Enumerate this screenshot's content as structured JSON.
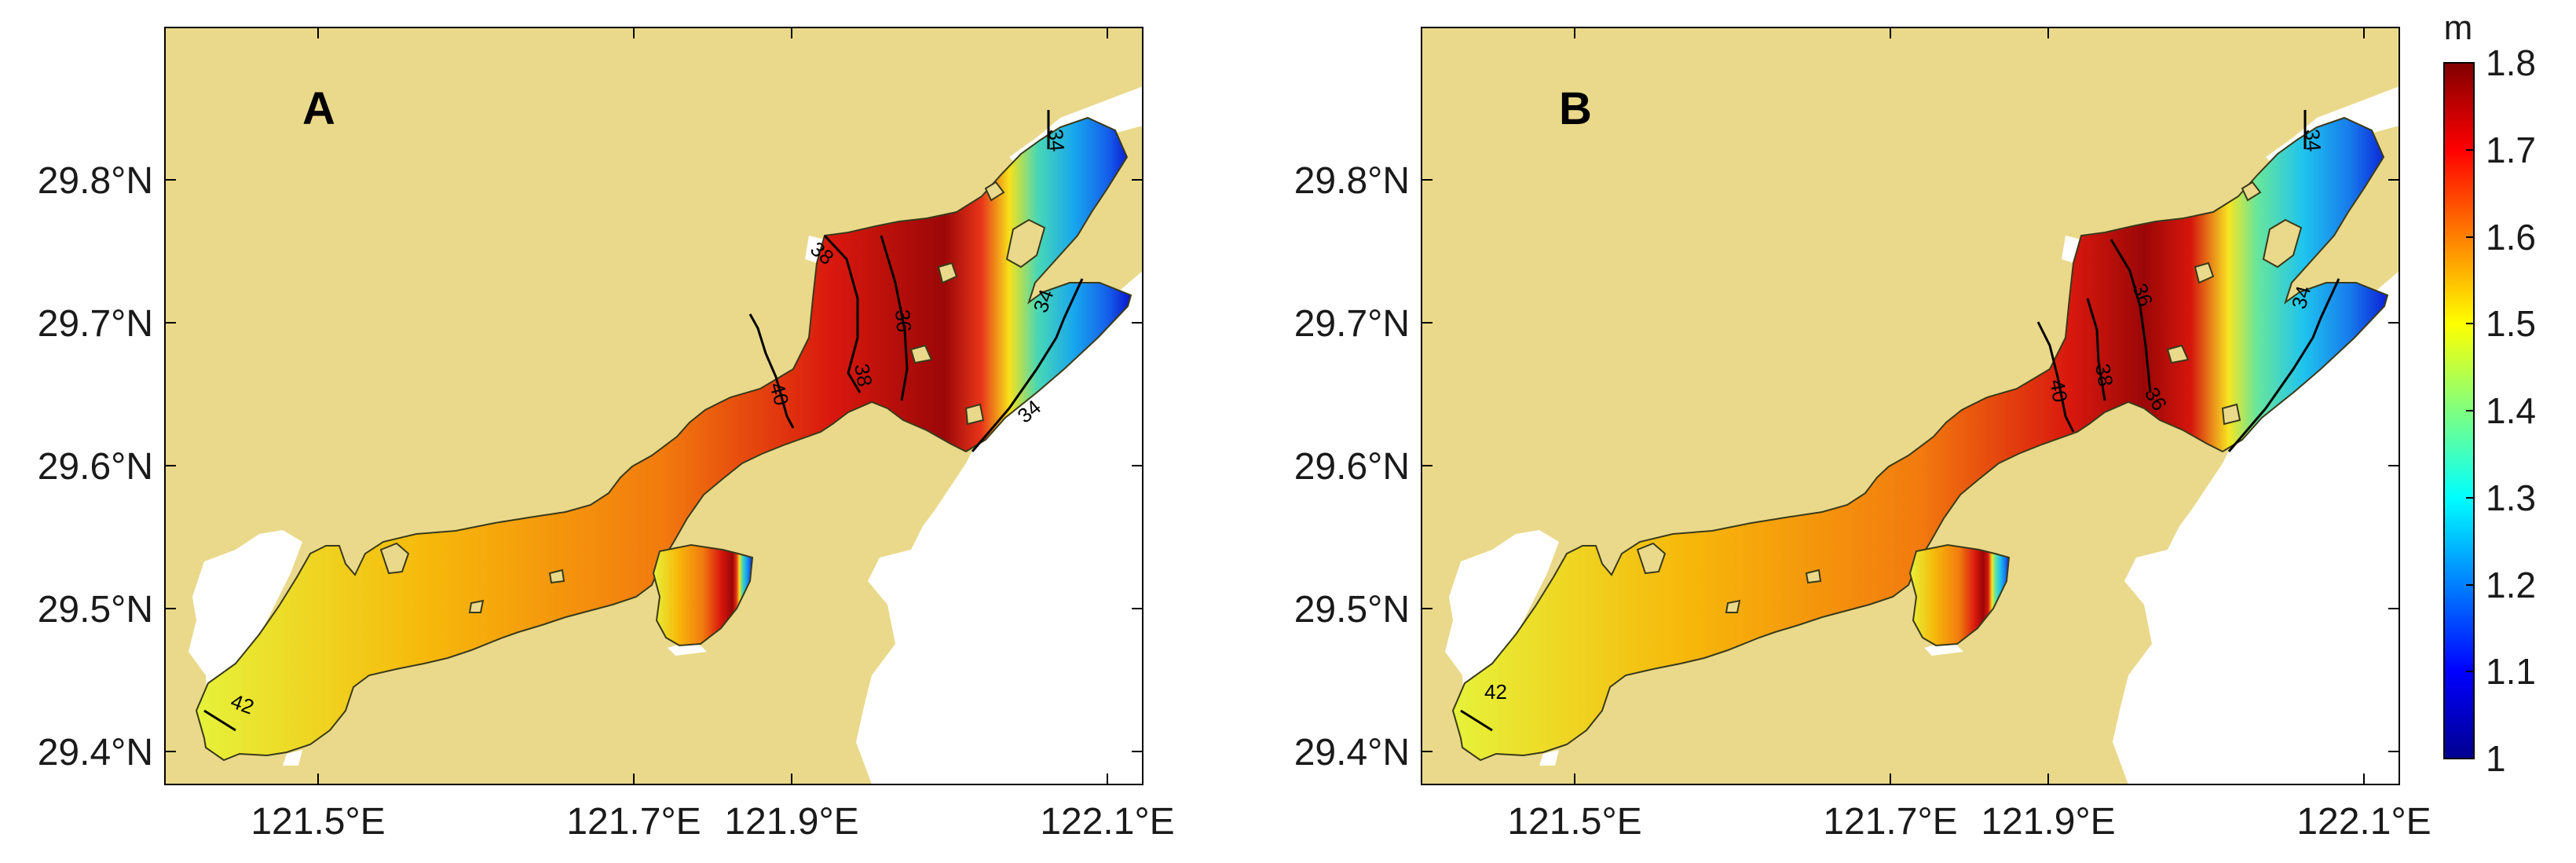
{
  "panels": [
    {
      "id": "A",
      "label": "A",
      "contour_labels": [
        {
          "text": "38"
        },
        {
          "text": "36"
        },
        {
          "text": "34"
        },
        {
          "text": "40"
        },
        {
          "text": "38"
        },
        {
          "text": "34"
        },
        {
          "text": "34"
        },
        {
          "text": "42"
        }
      ]
    },
    {
      "id": "B",
      "label": "B",
      "contour_labels": [
        {
          "text": "36"
        },
        {
          "text": "34"
        },
        {
          "text": "40"
        },
        {
          "text": "38"
        },
        {
          "text": "36"
        },
        {
          "text": "34"
        },
        {
          "text": "42"
        }
      ]
    }
  ],
  "axes": {
    "y_ticks": [
      "29.8°N",
      "29.7°N",
      "29.6°N",
      "29.5°N",
      "29.4°N"
    ],
    "x_ticks": [
      "121.5°E",
      "121.7°E",
      "121.9°E",
      "122.1°E"
    ]
  },
  "colorbar": {
    "unit": "m",
    "ticks": [
      "1.8",
      "1.7",
      "1.6",
      "1.5",
      "1.4",
      "1.3",
      "1.2",
      "1.1",
      "1"
    ],
    "range": [
      1,
      1.8
    ],
    "colormap": "jet"
  },
  "colors": {
    "land": "#EAD98A",
    "coastline": "#3a3a1a",
    "contour": "#000000"
  }
}
